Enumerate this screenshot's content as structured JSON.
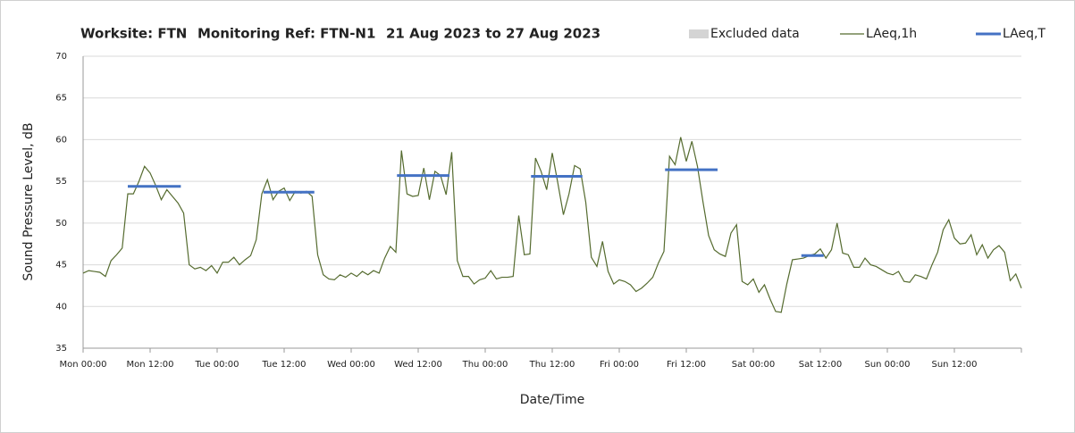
{
  "chart_data": {
    "type": "line",
    "title_parts": [
      "Worksite: FTN",
      "Monitoring Ref: FTN-N1",
      "21 Aug 2023 to 27 Aug 2023"
    ],
    "x_label": "Date/Time",
    "y_label": "Sound Pressure Level, dB",
    "excluded_data": {
      "name": "Excluded data",
      "color": "#d4d4d4"
    },
    "xlim": [
      0,
      168
    ],
    "xticks": [
      {
        "value": 0,
        "label": "Mon 00:00"
      },
      {
        "value": 12,
        "label": "Mon 12:00"
      },
      {
        "value": 24,
        "label": "Tue 00:00"
      },
      {
        "value": 36,
        "label": "Tue 12:00"
      },
      {
        "value": 48,
        "label": "Wed 00:00"
      },
      {
        "value": 60,
        "label": "Wed 12:00"
      },
      {
        "value": 72,
        "label": "Thu 00:00"
      },
      {
        "value": 84,
        "label": "Thu 12:00"
      },
      {
        "value": 96,
        "label": "Fri 00:00"
      },
      {
        "value": 108,
        "label": "Fri 12:00"
      },
      {
        "value": 120,
        "label": "Sat 00:00"
      },
      {
        "value": 132,
        "label": "Sat 12:00"
      },
      {
        "value": 144,
        "label": "Sun 00:00"
      },
      {
        "value": 156,
        "label": "Sun 12:00"
      }
    ],
    "ylim": [
      35,
      70
    ],
    "yticks": [
      35,
      40,
      45,
      50,
      55,
      60,
      65,
      70
    ],
    "grid": true,
    "series": [
      {
        "name": "LAeq,1h",
        "color": "#556b2f",
        "x": [
          0,
          1,
          2,
          3,
          4,
          5,
          6,
          7,
          8,
          9,
          10,
          11,
          12,
          13,
          14,
          15,
          16,
          17,
          18,
          19,
          20,
          21,
          22,
          23,
          24,
          25,
          26,
          27,
          28,
          29,
          30,
          31,
          32,
          33,
          34,
          35,
          36,
          37,
          38,
          39,
          40,
          41,
          42,
          43,
          44,
          45,
          46,
          47,
          48,
          49,
          50,
          51,
          52,
          53,
          54,
          55,
          56,
          57,
          58,
          59,
          60,
          61,
          62,
          63,
          64,
          65,
          66,
          67,
          68,
          69,
          70,
          71,
          72,
          73,
          74,
          75,
          76,
          77,
          78,
          79,
          80,
          81,
          82,
          83,
          84,
          85,
          86,
          87,
          88,
          89,
          90,
          91,
          92,
          93,
          94,
          95,
          96,
          97,
          98,
          99,
          100,
          101,
          102,
          103,
          104,
          105,
          106,
          107,
          108,
          109,
          110,
          111,
          112,
          113,
          114,
          115,
          116,
          117,
          118,
          119,
          120,
          121,
          122,
          123,
          124,
          125,
          126,
          127,
          128,
          129,
          130,
          131,
          132,
          133,
          134,
          135,
          136,
          137,
          138,
          139,
          140,
          141,
          142,
          143,
          144,
          145,
          146,
          147,
          148,
          149,
          150,
          151,
          152,
          153,
          154,
          155,
          156,
          157,
          158,
          159,
          160,
          161,
          162,
          163,
          164,
          165,
          166,
          167,
          168
        ],
        "values": [
          44,
          44.3,
          44.2,
          44.1,
          43.6,
          45.5,
          46.2,
          47,
          53.5,
          53.5,
          55,
          56.8,
          56,
          54.5,
          52.8,
          54,
          53.2,
          52.4,
          51.2,
          45,
          44.5,
          44.7,
          44.3,
          44.9,
          44,
          45.3,
          45.3,
          45.9,
          45,
          45.6,
          46.1,
          48,
          53.5,
          55.2,
          52.8,
          53.8,
          54.2,
          52.7,
          53.8,
          53.6,
          53.8,
          53.2,
          46.2,
          43.8,
          43.3,
          43.2,
          43.8,
          43.5,
          44,
          43.6,
          44.2,
          43.8,
          44.3,
          44,
          45.8,
          47.2,
          46.5,
          58.7,
          53.5,
          53.2,
          53.3,
          56.6,
          52.8,
          56.2,
          55.7,
          53.4,
          58.5,
          45.5,
          43.6,
          43.6,
          42.7,
          43.2,
          43.4,
          44.3,
          43.3,
          43.5,
          43.5,
          43.6,
          50.9,
          46.2,
          46.3,
          57.8,
          56.2,
          54,
          58.4,
          54.8,
          51,
          53.5,
          56.9,
          56.5,
          52.5,
          45.9,
          44.8,
          47.8,
          44.2,
          42.7,
          43.2,
          43,
          42.6,
          41.8,
          42.2,
          42.8,
          43.5,
          45.2,
          46.6,
          58,
          57,
          60.3,
          57.4,
          59.8,
          56.8,
          52.5,
          48.5,
          46.8,
          46.3,
          46,
          48.8,
          49.8,
          43,
          42.6,
          43.3,
          41.7,
          42.6,
          40.9,
          39.4,
          39.3,
          42.7,
          45.6,
          45.7,
          45.8,
          46.1,
          46.3,
          46.9,
          45.8,
          46.8,
          50,
          46.4,
          46.2,
          44.7,
          44.7,
          45.8,
          45,
          44.8,
          44.4,
          44,
          43.8,
          44.2,
          43,
          42.9,
          43.8,
          43.6,
          43.3,
          45,
          46.5,
          49.2,
          50.4,
          48.2,
          47.5,
          47.6,
          48.6,
          46.2,
          47.4,
          45.8,
          46.8,
          47.3,
          46.5,
          43.1,
          43.9,
          42.2
        ]
      },
      {
        "name": "LAeq,T",
        "color": "#4472c4",
        "x": [
          [
            8,
            17.5
          ],
          [
            32.3,
            41.4
          ],
          [
            56.2,
            65.6
          ],
          [
            80.2,
            89.4
          ],
          [
            104.2,
            113.6
          ],
          [
            128.6,
            132.6
          ]
        ],
        "values": [
          54.4,
          53.7,
          55.7,
          55.6,
          56.4,
          46.1
        ]
      }
    ]
  }
}
